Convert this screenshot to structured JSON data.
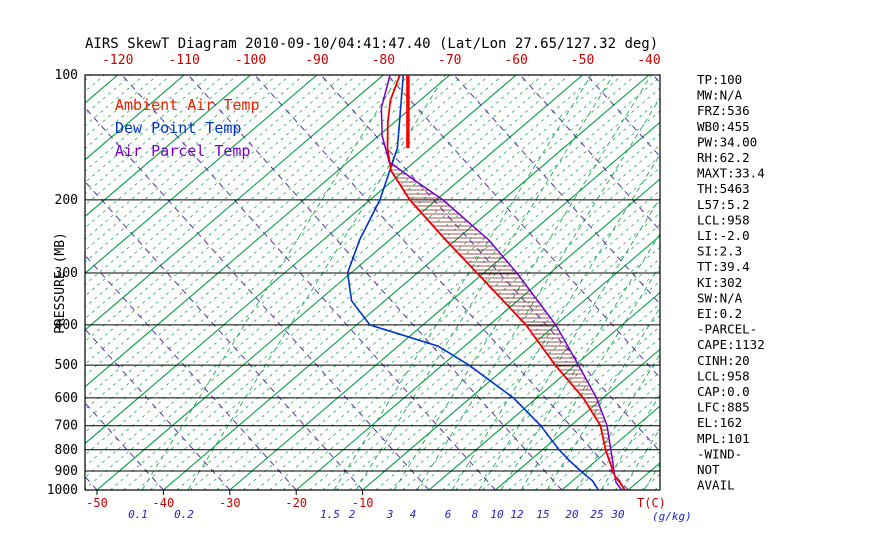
{
  "title": "AIRS SkewT Diagram 2010-09-10/04:41:47.40 (Lat/Lon 27.65/127.32 deg)",
  "colors": {
    "isotherm": "#00A040",
    "dry_adiabat": "#5533AA",
    "isobar": "#000000",
    "ambient": "#EE0000",
    "dewpoint": "#0033CC",
    "parcel": "#7700CC",
    "hatch": "#8B1A1A",
    "top_axis_label": "#CC0000",
    "bottom_temp_label": "#CC0000",
    "mixing_label": "#2222CC",
    "marker": "#FF0000",
    "text": "#000000"
  },
  "legend": [
    {
      "label": "Ambient Air Temp",
      "color": "#EE2200"
    },
    {
      "label": "Dew Point Temp",
      "color": "#0033CC"
    },
    {
      "label": "Air Parcel Temp",
      "color": "#7700CC"
    }
  ],
  "axes": {
    "pressure_label": "PRESSURE (MB)",
    "pressure_ticks": [
      100,
      200,
      300,
      400,
      500,
      600,
      700,
      800,
      900,
      1000
    ],
    "top_temp_ticks": [
      -120,
      -110,
      -100,
      -90,
      -80,
      -70,
      -60,
      -50,
      -40
    ],
    "bottom_temp_ticks": [
      -50,
      -40,
      -30,
      -20,
      -10
    ],
    "temp_unit": "T(C)",
    "mixing_unit": "(g/kg)",
    "mixing_ratio_ticks": [
      "0.1",
      "0.2",
      "1.5",
      "2",
      "3",
      "4",
      "6",
      "8",
      "10",
      "12",
      "15",
      "20",
      "25",
      "30"
    ]
  },
  "stats": [
    "TP:100",
    "MW:N/A",
    "FRZ:536",
    "WB0:455",
    "PW:34.00",
    "RH:62.2",
    "MAXT:33.4",
    "TH:5463",
    "L57:5.2",
    "LCL:958",
    "LI:-2.0",
    "SI:2.3",
    "TT:39.4",
    "KI:302",
    "SW:N/A",
    "EI:0.2",
    "-PARCEL-",
    "CAPE:1132",
    "CINH:20",
    "LCL:958",
    "CAP:0.0",
    "LFC:885",
    "EL:162",
    "MPL:101",
    "-WIND-",
    "NOT",
    "AVAIL"
  ],
  "chart_data": {
    "type": "line",
    "title": "AIRS SkewT Diagram 2010-09-10/04:41:47.40 (Lat/Lon 27.65/127.32 deg)",
    "xlabel": "Temperature (C)",
    "ylabel": "Pressure (MB)",
    "y_scale": "log",
    "ylim": [
      1000,
      100
    ],
    "x_axis_skew_deg": 45,
    "legend_position": "upper-left",
    "series": [
      {
        "name": "Ambient Air Temp",
        "color": "#EE0000",
        "points": [
          {
            "p": 1000,
            "t": 29.5
          },
          {
            "p": 970,
            "t": 28
          },
          {
            "p": 925,
            "t": 25.5
          },
          {
            "p": 850,
            "t": 22
          },
          {
            "p": 800,
            "t": 19.5
          },
          {
            "p": 700,
            "t": 14.5
          },
          {
            "p": 600,
            "t": 7
          },
          {
            "p": 500,
            "t": -3
          },
          {
            "p": 400,
            "t": -14.5
          },
          {
            "p": 300,
            "t": -31
          },
          {
            "p": 250,
            "t": -41.5
          },
          {
            "p": 200,
            "t": -54
          },
          {
            "p": 170,
            "t": -62
          },
          {
            "p": 150,
            "t": -66.5
          },
          {
            "p": 130,
            "t": -71
          },
          {
            "p": 115,
            "t": -74.5
          },
          {
            "p": 100,
            "t": -77.5
          }
        ]
      },
      {
        "name": "Dew Point Temp",
        "color": "#0033CC",
        "points": [
          {
            "p": 1000,
            "t": 25.5
          },
          {
            "p": 950,
            "t": 23
          },
          {
            "p": 900,
            "t": 19.5
          },
          {
            "p": 850,
            "t": 16
          },
          {
            "p": 800,
            "t": 12.5
          },
          {
            "p": 700,
            "t": 5.5
          },
          {
            "p": 600,
            "t": -3.5
          },
          {
            "p": 500,
            "t": -16
          },
          {
            "p": 450,
            "t": -24
          },
          {
            "p": 400,
            "t": -38
          },
          {
            "p": 350,
            "t": -45
          },
          {
            "p": 300,
            "t": -50.5
          },
          {
            "p": 250,
            "t": -54.5
          },
          {
            "p": 200,
            "t": -58.5
          },
          {
            "p": 150,
            "t": -65
          },
          {
            "p": 100,
            "t": -77
          }
        ]
      },
      {
        "name": "Air Parcel Temp",
        "color": "#7700CC",
        "points": [
          {
            "p": 1000,
            "t": 29
          },
          {
            "p": 958,
            "t": 26.8
          },
          {
            "p": 900,
            "t": 24.5
          },
          {
            "p": 850,
            "t": 22.5
          },
          {
            "p": 800,
            "t": 20.3
          },
          {
            "p": 700,
            "t": 15.5
          },
          {
            "p": 600,
            "t": 9
          },
          {
            "p": 500,
            "t": 0.5
          },
          {
            "p": 400,
            "t": -10
          },
          {
            "p": 300,
            "t": -25
          },
          {
            "p": 250,
            "t": -35
          },
          {
            "p": 200,
            "t": -49
          },
          {
            "p": 180,
            "t": -56.5
          },
          {
            "p": 162,
            "t": -63.8
          },
          {
            "p": 140,
            "t": -69.5
          },
          {
            "p": 120,
            "t": -74.5
          },
          {
            "p": 100,
            "t": -79
          }
        ]
      }
    ],
    "cape_region": {
      "from_p": 885,
      "to_p": 162,
      "style": "horizontal-hatch"
    },
    "tropopause_marker": {
      "p_top": 100,
      "p_bottom": 150,
      "t_at_top": -76.3
    }
  }
}
